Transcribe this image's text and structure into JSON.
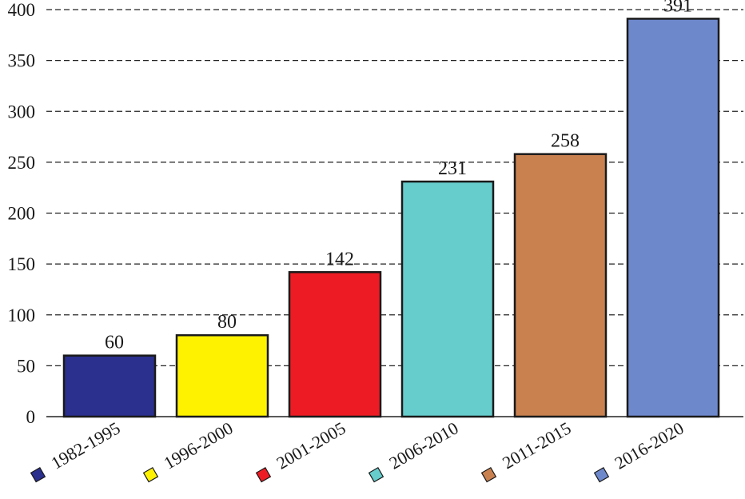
{
  "chart_data": {
    "type": "bar",
    "title": "",
    "xlabel": "",
    "ylabel": "",
    "categories": [
      "1982-1995",
      "1996-2000",
      "2001-2005",
      "2006-2010",
      "2011-2015",
      "2016-2020"
    ],
    "values": [
      60,
      80,
      142,
      231,
      258,
      391
    ],
    "data_labels": [
      "60",
      "80",
      "142",
      "231",
      "258",
      "391"
    ],
    "colors": [
      "#2b2f8e",
      "#fff200",
      "#ed1c24",
      "#66cccc",
      "#c98150",
      "#6e88cc"
    ],
    "ylim": [
      0,
      400
    ],
    "y_ticks": [
      0,
      50,
      100,
      150,
      200,
      250,
      300,
      350,
      400
    ],
    "y_tick_labels": [
      "0",
      "50",
      "100",
      "150",
      "200",
      "250",
      "300",
      "350",
      "400"
    ],
    "grid": true,
    "grid_style": "dashed horizontal",
    "legend": "category labels with color swatches below bars, rotated"
  }
}
